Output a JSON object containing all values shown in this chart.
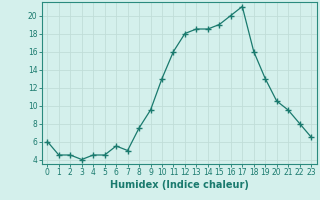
{
  "x": [
    0,
    1,
    2,
    3,
    4,
    5,
    6,
    7,
    8,
    9,
    10,
    11,
    12,
    13,
    14,
    15,
    16,
    17,
    18,
    19,
    20,
    21,
    22,
    23
  ],
  "y": [
    6,
    4.5,
    4.5,
    4,
    4.5,
    4.5,
    5.5,
    5,
    7.5,
    9.5,
    13,
    16,
    18,
    18.5,
    18.5,
    19,
    20,
    21,
    16,
    13,
    10.5,
    9.5,
    8,
    6.5
  ],
  "line_color": "#1a7a6e",
  "marker": "+",
  "marker_size": 4,
  "bg_color": "#d4f0ec",
  "grid_major_color": "#c0ddd8",
  "grid_minor_color": "#c8e6e2",
  "xlabel": "Humidex (Indice chaleur)",
  "ylabel": "",
  "xlim": [
    -0.5,
    23.5
  ],
  "ylim": [
    3.5,
    21.5
  ],
  "yticks": [
    4,
    6,
    8,
    10,
    12,
    14,
    16,
    18,
    20
  ],
  "xticks": [
    0,
    1,
    2,
    3,
    4,
    5,
    6,
    7,
    8,
    9,
    10,
    11,
    12,
    13,
    14,
    15,
    16,
    17,
    18,
    19,
    20,
    21,
    22,
    23
  ],
  "tick_label_fontsize": 5.5,
  "xlabel_fontsize": 7,
  "axis_color": "#1a7a6e",
  "spine_color": "#2a8a7e"
}
